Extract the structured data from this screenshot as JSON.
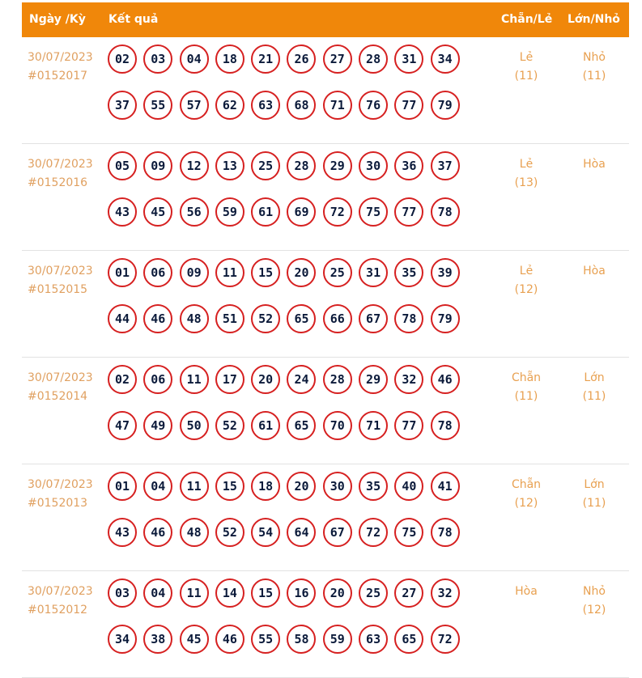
{
  "header": {
    "date_col": "Ngày /Kỳ",
    "result_col": "Kết quả",
    "parity_col": "Chẵn/Lẻ",
    "size_col": "Lớn/Nhỏ"
  },
  "rows": [
    {
      "date": "30/07/2023",
      "draw": "#0152017",
      "numbers": [
        "02",
        "03",
        "04",
        "18",
        "21",
        "26",
        "27",
        "28",
        "31",
        "34",
        "37",
        "55",
        "57",
        "62",
        "63",
        "68",
        "71",
        "76",
        "77",
        "79"
      ],
      "parity": "Lẻ",
      "parity_count": "(11)",
      "size": "Nhỏ",
      "size_count": "(11)"
    },
    {
      "date": "30/07/2023",
      "draw": "#0152016",
      "numbers": [
        "05",
        "09",
        "12",
        "13",
        "25",
        "28",
        "29",
        "30",
        "36",
        "37",
        "43",
        "45",
        "56",
        "59",
        "61",
        "69",
        "72",
        "75",
        "77",
        "78"
      ],
      "parity": "Lẻ",
      "parity_count": "(13)",
      "size": "Hòa",
      "size_count": ""
    },
    {
      "date": "30/07/2023",
      "draw": "#0152015",
      "numbers": [
        "01",
        "06",
        "09",
        "11",
        "15",
        "20",
        "25",
        "31",
        "35",
        "39",
        "44",
        "46",
        "48",
        "51",
        "52",
        "65",
        "66",
        "67",
        "78",
        "79"
      ],
      "parity": "Lẻ",
      "parity_count": "(12)",
      "size": "Hòa",
      "size_count": ""
    },
    {
      "date": "30/07/2023",
      "draw": "#0152014",
      "numbers": [
        "02",
        "06",
        "11",
        "17",
        "20",
        "24",
        "28",
        "29",
        "32",
        "46",
        "47",
        "49",
        "50",
        "52",
        "61",
        "65",
        "70",
        "71",
        "77",
        "78"
      ],
      "parity": "Chẵn",
      "parity_count": "(11)",
      "size": "Lớn",
      "size_count": "(11)"
    },
    {
      "date": "30/07/2023",
      "draw": "#0152013",
      "numbers": [
        "01",
        "04",
        "11",
        "15",
        "18",
        "20",
        "30",
        "35",
        "40",
        "41",
        "43",
        "46",
        "48",
        "52",
        "54",
        "64",
        "67",
        "72",
        "75",
        "78"
      ],
      "parity": "Chẵn",
      "parity_count": "(12)",
      "size": "Lớn",
      "size_count": "(11)"
    },
    {
      "date": "30/07/2023",
      "draw": "#0152012",
      "numbers": [
        "03",
        "04",
        "11",
        "14",
        "15",
        "16",
        "20",
        "25",
        "27",
        "32",
        "34",
        "38",
        "45",
        "46",
        "55",
        "58",
        "59",
        "63",
        "65",
        "72"
      ],
      "parity": "Hòa",
      "parity_count": "",
      "size": "Nhỏ",
      "size_count": "(12)"
    }
  ]
}
